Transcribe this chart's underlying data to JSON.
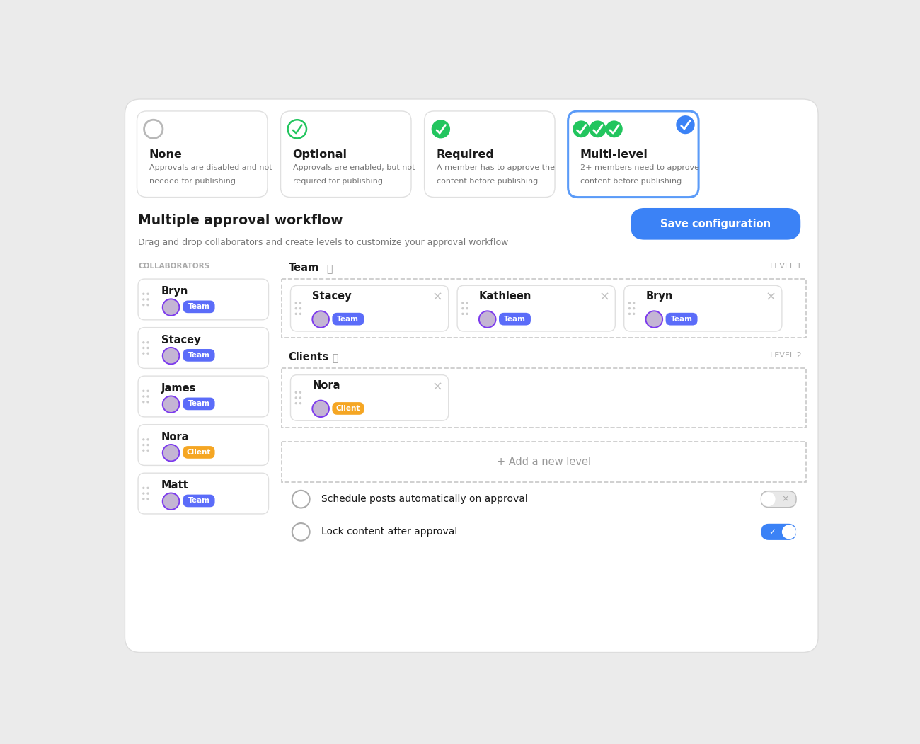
{
  "bg_color": "#ebebeb",
  "card_bg": "#ffffff",
  "border_color": "#e0e0e0",
  "blue_selected_border": "#5b9bf8",
  "blue_btn": "#5b6cf9",
  "orange_btn": "#f5a623",
  "green_check": "#22c55e",
  "blue_circle": "#3b82f6",
  "gray_text": "#888888",
  "dark_text": "#1a1a1a",
  "subtitle_text": "#777777",
  "collab_label": "#aaaaaa",
  "level_label": "#aaaaaa",
  "dashed_border": "#c8c8c8",
  "approval_modes": [
    {
      "title": "None",
      "desc": "Approvals are disabled and not needed for publishing",
      "icon": "circle_empty",
      "selected": false
    },
    {
      "title": "Optional",
      "desc": "Approvals are enabled, but not required for publishing",
      "icon": "check_outline",
      "selected": false
    },
    {
      "title": "Required",
      "desc": "A member has to approve the content before publishing",
      "icon": "check_filled",
      "selected": false
    },
    {
      "title": "Multi-level",
      "desc": "2+ members need to approve content before publishing",
      "icon": "check_triple",
      "selected": true
    }
  ],
  "section_title": "Multiple approval workflow",
  "section_subtitle": "Drag and drop collaborators and create levels to customize your approval workflow",
  "save_btn_text": "Save configuration",
  "collaborators_label": "COLLABORATORS",
  "collaborators": [
    {
      "name": "Bryn",
      "role": "Team"
    },
    {
      "name": "Stacey",
      "role": "Team"
    },
    {
      "name": "James",
      "role": "Team"
    },
    {
      "name": "Nora",
      "role": "Client"
    },
    {
      "name": "Matt",
      "role": "Team"
    }
  ],
  "levels": [
    {
      "group": "Team",
      "level_num": "LEVEL 1",
      "members": [
        {
          "name": "Stacey",
          "role": "Team"
        },
        {
          "name": "Kathleen",
          "role": "Team"
        },
        {
          "name": "Bryn",
          "role": "Team"
        }
      ]
    },
    {
      "group": "Clients",
      "level_num": "LEVEL 2",
      "members": [
        {
          "name": "Nora",
          "role": "Client"
        }
      ]
    }
  ],
  "add_level_text": "+ Add a new level",
  "toggles": [
    {
      "label": "Schedule posts automatically on approval",
      "on": false
    },
    {
      "label": "Lock content after approval",
      "on": true
    }
  ]
}
